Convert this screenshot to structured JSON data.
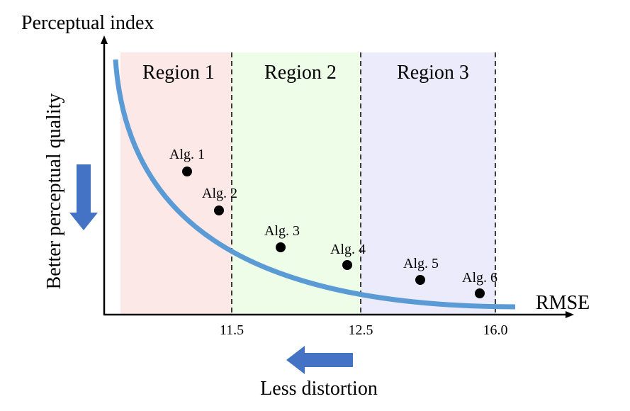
{
  "chart_data": {
    "type": "scatter",
    "title": "",
    "ylabel": "Perceptual index",
    "xlabel": "RMSE",
    "y_axis_side_label": "Better perceptual quality",
    "x_axis_bottom_label": "Less distortion",
    "x_ticks": [
      "11.5",
      "12.5",
      "16.0"
    ],
    "regions": [
      {
        "label": "Region 1",
        "color": "#fde8e8"
      },
      {
        "label": "Region 2",
        "color": "#eefde8"
      },
      {
        "label": "Region 3",
        "color": "#ebebfb"
      }
    ],
    "boundary_ticks": [
      "11.5",
      "12.5",
      "16.0"
    ],
    "curve_color": "#5b9bd5",
    "arrow_color": "#4472c4",
    "points": [
      {
        "label": "Alg. 1",
        "region": 1
      },
      {
        "label": "Alg. 2",
        "region": 1
      },
      {
        "label": "Alg. 3",
        "region": 2
      },
      {
        "label": "Alg. 4",
        "region": 2
      },
      {
        "label": "Alg. 5",
        "region": 3
      },
      {
        "label": "Alg. 6",
        "region": 3
      }
    ],
    "grid": false,
    "legend": "none"
  }
}
